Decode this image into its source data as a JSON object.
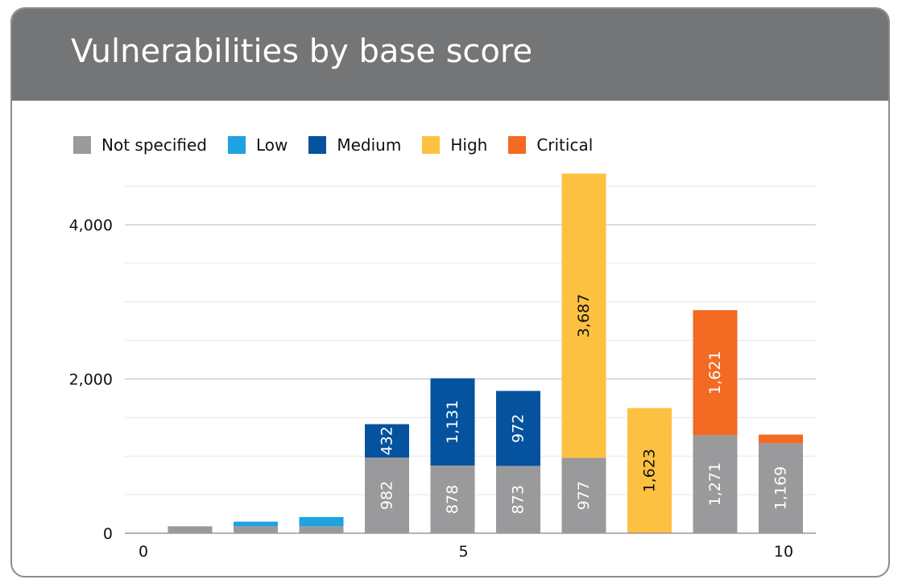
{
  "chart_data": {
    "type": "bar",
    "stacked": true,
    "title": "Vulnerabilities by base score",
    "xlabel": "",
    "ylabel": "",
    "x_ticks": [
      "0",
      "5",
      "10"
    ],
    "y_ticks": [
      "0",
      "2,000",
      "4,000"
    ],
    "ylim": [
      0,
      4600
    ],
    "grid": true,
    "legend_position": "top-left",
    "categories": [
      "1",
      "2",
      "3",
      "4",
      "5",
      "6",
      "7",
      "8",
      "9",
      "10"
    ],
    "series": [
      {
        "name": "Not specified",
        "color": "#9a9a9c",
        "values": [
          90,
          90,
          90,
          982,
          878,
          873,
          977,
          0,
          1271,
          1169
        ],
        "labels": [
          "",
          "",
          "",
          "982",
          "878",
          "873",
          "977",
          "",
          "1,271",
          "1,169"
        ]
      },
      {
        "name": "Low",
        "color": "#1ea2e0",
        "values": [
          0,
          60,
          120,
          0,
          0,
          0,
          0,
          0,
          0,
          0
        ],
        "labels": [
          "",
          "",
          "",
          "",
          "",
          "",
          "",
          "",
          "",
          ""
        ]
      },
      {
        "name": "Medium",
        "color": "#05529f",
        "values": [
          0,
          0,
          0,
          432,
          1131,
          972,
          0,
          0,
          0,
          0
        ],
        "labels": [
          "",
          "",
          "",
          "432",
          "1,131",
          "972",
          "",
          "",
          "",
          ""
        ]
      },
      {
        "name": "High",
        "color": "#fdc141",
        "values": [
          0,
          0,
          0,
          0,
          0,
          0,
          3687,
          1623,
          0,
          0
        ],
        "labels": [
          "",
          "",
          "",
          "",
          "",
          "",
          "3,687",
          "1,623",
          "",
          ""
        ]
      },
      {
        "name": "Critical",
        "color": "#f36a22",
        "values": [
          0,
          0,
          0,
          0,
          0,
          0,
          0,
          0,
          1621,
          110
        ],
        "labels": [
          "",
          "",
          "",
          "",
          "",
          "",
          "",
          "",
          "1,621",
          ""
        ]
      }
    ]
  }
}
